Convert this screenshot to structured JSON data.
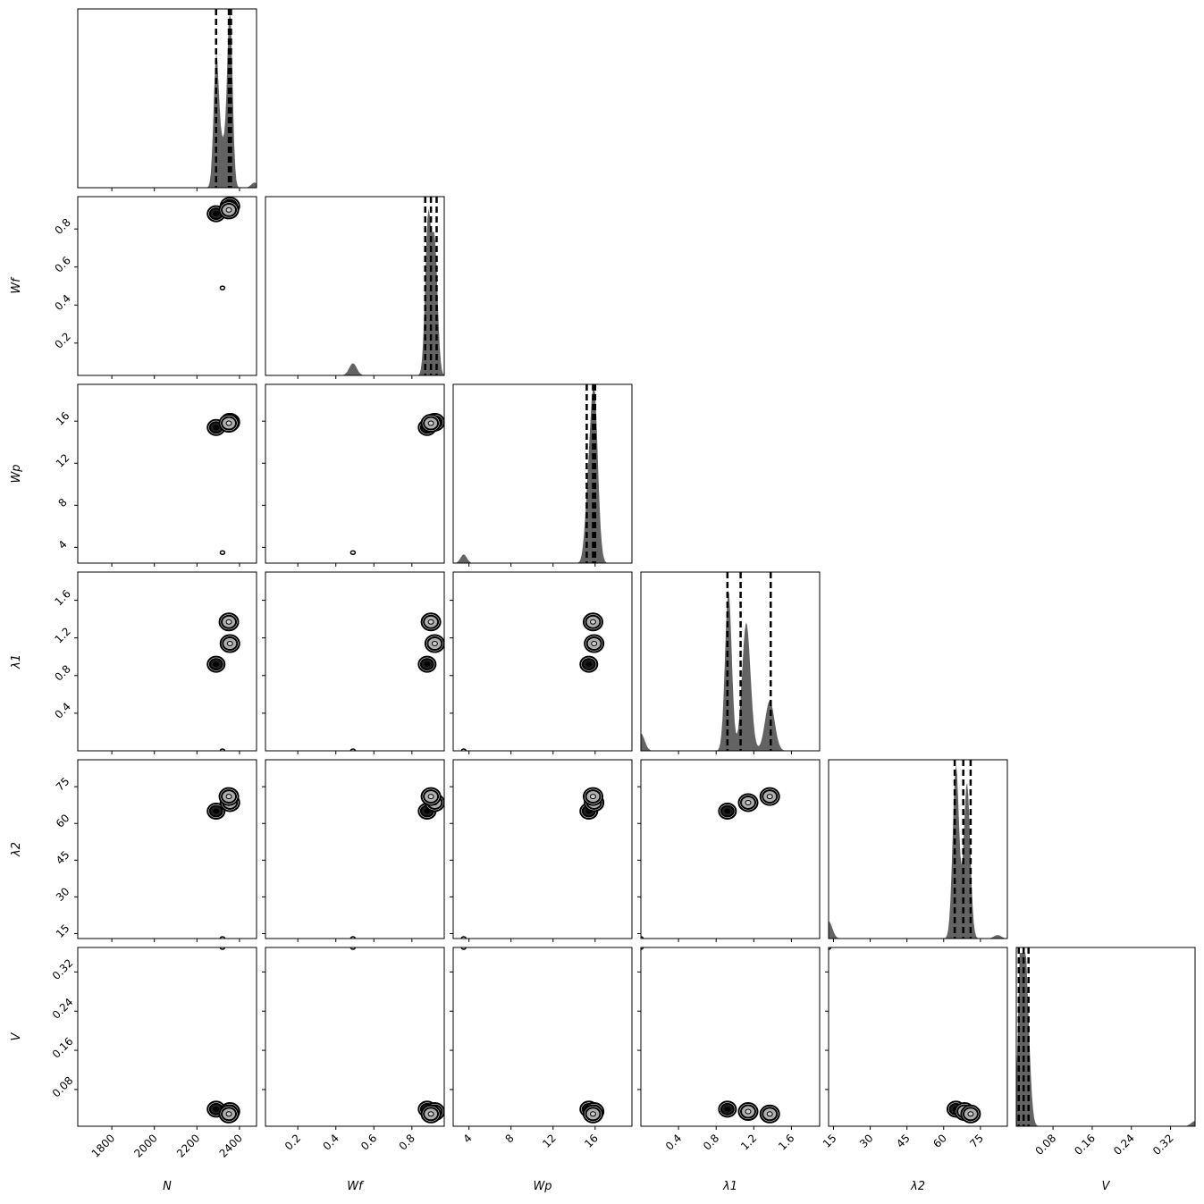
{
  "chart_data": {
    "type": "corner",
    "parameters": [
      {
        "key": "N",
        "label": "N",
        "range": [
          1640,
          2480
        ],
        "ticks": [
          1800,
          2000,
          2200,
          2400
        ],
        "tick_labels": [
          "1800",
          "2000",
          "2200",
          "2400"
        ],
        "quantiles": [
          2290,
          2350,
          2360
        ]
      },
      {
        "key": "Wf",
        "label": "Wf",
        "range": [
          0.03,
          0.97
        ],
        "ticks": [
          0.2,
          0.4,
          0.6,
          0.8
        ],
        "tick_labels": [
          "0.2",
          "0.4",
          "0.6",
          "0.8"
        ],
        "quantiles": [
          0.87,
          0.9,
          0.93
        ]
      },
      {
        "key": "Wp",
        "label": "Wp",
        "range": [
          2.5,
          19.5
        ],
        "ticks": [
          4,
          8,
          12,
          16
        ],
        "tick_labels": [
          "4",
          "8",
          "12",
          "16"
        ],
        "quantiles": [
          15.2,
          15.8,
          16.0
        ]
      },
      {
        "key": "l1",
        "label": "λ1",
        "range": [
          0.0,
          1.9
        ],
        "ticks": [
          0.4,
          0.8,
          1.2,
          1.6
        ],
        "tick_labels": [
          "0.4",
          "0.8",
          "1.2",
          "1.6"
        ],
        "quantiles": [
          0.92,
          1.06,
          1.38
        ]
      },
      {
        "key": "l2",
        "label": "λ2",
        "range": [
          13,
          86
        ],
        "ticks": [
          15,
          30,
          45,
          60,
          75
        ],
        "tick_labels": [
          "15",
          "30",
          "45",
          "60",
          "75"
        ],
        "quantiles": [
          64.5,
          68,
          71
        ]
      },
      {
        "key": "V",
        "label": "V",
        "range": [
          0.005,
          0.37
        ],
        "ticks": [
          0.08,
          0.16,
          0.24,
          0.32
        ],
        "tick_labels": [
          "0.08",
          "0.16",
          "0.24",
          "0.32"
        ],
        "quantiles": [
          0.01,
          0.02,
          0.03
        ]
      }
    ],
    "histograms": [
      {
        "param": "N",
        "peaks": [
          {
            "center": 2290,
            "width": 12,
            "height": 0.69
          },
          {
            "center": 2355,
            "width": 12,
            "height": 1.0
          },
          {
            "center": 2320,
            "width": 20,
            "height": 0.25
          },
          {
            "center": 2470,
            "width": 15,
            "height": 0.03
          }
        ]
      },
      {
        "param": "Wf",
        "peaks": [
          {
            "center": 0.885,
            "width": 0.015,
            "height": 0.9
          },
          {
            "center": 0.92,
            "width": 0.015,
            "height": 0.75
          },
          {
            "center": 0.49,
            "width": 0.02,
            "height": 0.07
          }
        ]
      },
      {
        "param": "Wp",
        "peaks": [
          {
            "center": 15.9,
            "width": 0.35,
            "height": 1.0
          },
          {
            "center": 15.3,
            "width": 0.3,
            "height": 0.3
          },
          {
            "center": 3.5,
            "width": 0.3,
            "height": 0.05
          }
        ]
      },
      {
        "param": "l1",
        "peaks": [
          {
            "center": 0.93,
            "width": 0.035,
            "height": 0.93
          },
          {
            "center": 1.12,
            "width": 0.045,
            "height": 0.74
          },
          {
            "center": 1.37,
            "width": 0.05,
            "height": 0.29
          },
          {
            "center": 0.0,
            "width": 0.04,
            "height": 0.1
          }
        ]
      },
      {
        "param": "l2",
        "peaks": [
          {
            "center": 65,
            "width": 1.3,
            "height": 1.0
          },
          {
            "center": 69.5,
            "width": 1.3,
            "height": 0.9
          },
          {
            "center": 13,
            "width": 1.5,
            "height": 0.1
          },
          {
            "center": 82,
            "width": 1.5,
            "height": 0.02
          }
        ]
      },
      {
        "param": "V",
        "peaks": [
          {
            "center": 0.015,
            "width": 0.006,
            "height": 1.0
          },
          {
            "center": 0.025,
            "width": 0.007,
            "height": 0.75
          },
          {
            "center": 0.37,
            "width": 0.008,
            "height": 0.03
          }
        ]
      }
    ],
    "modes": [
      {
        "N": 2290,
        "Wf": 0.88,
        "Wp": 15.4,
        "l1": 0.92,
        "l2": 65,
        "V": 0.04
      },
      {
        "N": 2355,
        "Wf": 0.92,
        "Wp": 15.9,
        "l1": 1.14,
        "l2": 68.5,
        "V": 0.035
      },
      {
        "N": 2350,
        "Wf": 0.9,
        "Wp": 15.8,
        "l1": 1.37,
        "l2": 71,
        "V": 0.03
      }
    ],
    "outliers": [
      {
        "N": 2320,
        "Wf": 0.49,
        "Wp": 3.5,
        "l1": 0.0,
        "l2": 13,
        "V": 0.37
      }
    ],
    "hist_color": "#636363",
    "contour_fill": "#b0b0b0",
    "line_color": "#000000"
  }
}
